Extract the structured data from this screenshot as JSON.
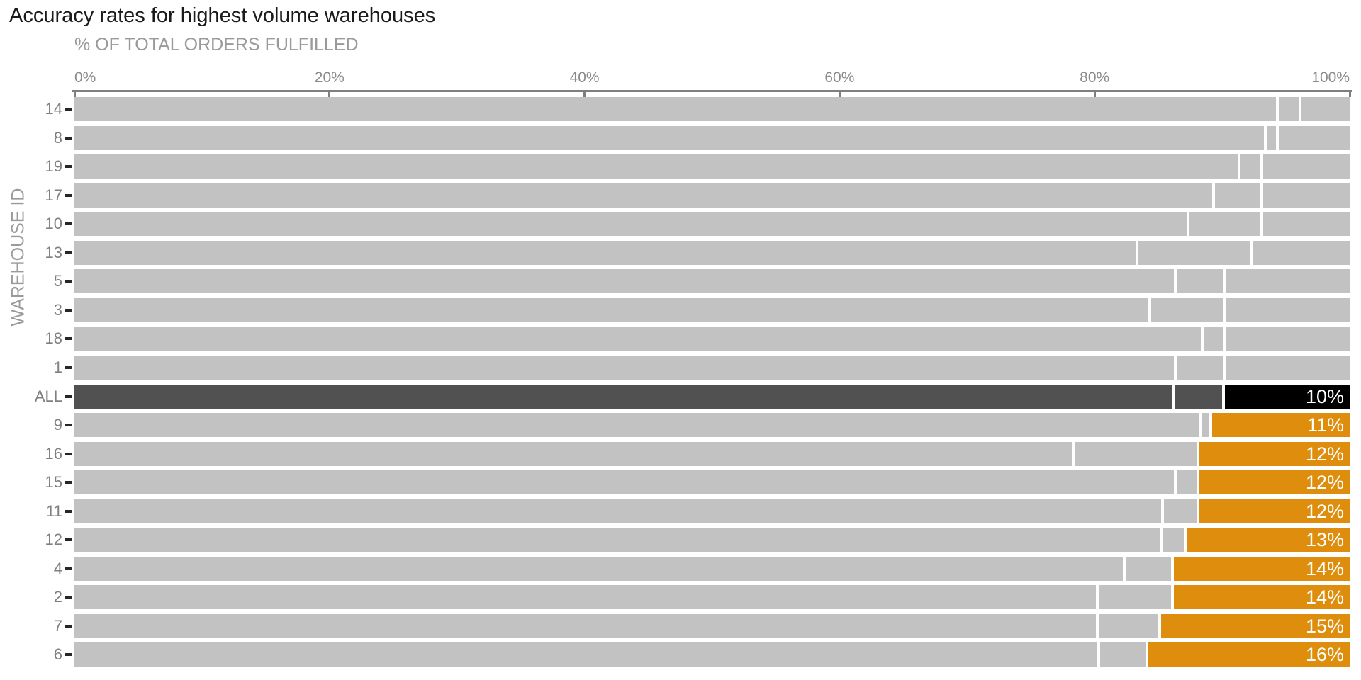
{
  "chart_data": {
    "type": "bar",
    "variant": "horizontal-stacked-100pct",
    "title": "Accuracy rates for highest volume warehouses",
    "xlabel": "% OF TOTAL ORDERS FULFILLED",
    "ylabel": "WAREHOUSE ID",
    "xlim": [
      0,
      100
    ],
    "grid": "off",
    "legend": "none",
    "x_ticks": [
      {
        "value": 0,
        "label": "0%"
      },
      {
        "value": 20,
        "label": "20%"
      },
      {
        "value": 40,
        "label": "40%"
      },
      {
        "value": 60,
        "label": "60%"
      },
      {
        "value": 80,
        "label": "80%"
      },
      {
        "value": 100,
        "label": "100%"
      }
    ],
    "segment_meaning": [
      "segment-1",
      "segment-2",
      "segment-3-inaccurate-share"
    ],
    "rows": [
      {
        "id": "14",
        "segments": [
          94.2,
          1.8,
          4.0
        ],
        "label": null,
        "emphasis": "muted"
      },
      {
        "id": "8",
        "segments": [
          93.3,
          0.9,
          5.8
        ],
        "label": null,
        "emphasis": "muted"
      },
      {
        "id": "19",
        "segments": [
          91.2,
          1.8,
          7.0
        ],
        "label": null,
        "emphasis": "muted"
      },
      {
        "id": "17",
        "segments": [
          89.2,
          3.8,
          7.0
        ],
        "label": null,
        "emphasis": "muted"
      },
      {
        "id": "10",
        "segments": [
          87.2,
          5.8,
          7.0
        ],
        "label": null,
        "emphasis": "muted"
      },
      {
        "id": "13",
        "segments": [
          83.2,
          9.0,
          7.8
        ],
        "label": null,
        "emphasis": "muted"
      },
      {
        "id": "5",
        "segments": [
          86.2,
          3.9,
          9.9
        ],
        "label": null,
        "emphasis": "muted"
      },
      {
        "id": "3",
        "segments": [
          84.2,
          5.9,
          9.9
        ],
        "label": null,
        "emphasis": "muted"
      },
      {
        "id": "18",
        "segments": [
          88.3,
          1.8,
          9.9
        ],
        "label": null,
        "emphasis": "muted"
      },
      {
        "id": "1",
        "segments": [
          86.2,
          3.9,
          9.9
        ],
        "label": null,
        "emphasis": "muted"
      },
      {
        "id": "ALL",
        "segments": [
          86.1,
          3.9,
          10.0
        ],
        "label": "10%",
        "emphasis": "all"
      },
      {
        "id": "9",
        "segments": [
          88.2,
          0.8,
          11.0
        ],
        "label": "11%",
        "emphasis": "highlight"
      },
      {
        "id": "16",
        "segments": [
          78.2,
          9.8,
          12.0
        ],
        "label": "12%",
        "emphasis": "highlight"
      },
      {
        "id": "15",
        "segments": [
          86.2,
          1.8,
          12.0
        ],
        "label": "12%",
        "emphasis": "highlight"
      },
      {
        "id": "11",
        "segments": [
          85.2,
          2.8,
          12.0
        ],
        "label": "12%",
        "emphasis": "highlight"
      },
      {
        "id": "12",
        "segments": [
          85.1,
          1.9,
          13.0
        ],
        "label": "13%",
        "emphasis": "highlight"
      },
      {
        "id": "4",
        "segments": [
          82.2,
          3.8,
          14.0
        ],
        "label": "14%",
        "emphasis": "highlight"
      },
      {
        "id": "2",
        "segments": [
          80.1,
          5.9,
          14.0
        ],
        "label": "14%",
        "emphasis": "highlight"
      },
      {
        "id": "7",
        "segments": [
          80.1,
          4.9,
          15.0
        ],
        "label": "15%",
        "emphasis": "highlight"
      },
      {
        "id": "6",
        "segments": [
          80.2,
          3.8,
          16.0
        ],
        "label": "16%",
        "emphasis": "highlight"
      }
    ]
  },
  "colors": {
    "background": "#ffffff",
    "title_text": "#1a1a1a",
    "axis_title_text": "#9a9a9a",
    "tick_label_text": "#8b8b8b",
    "row_label_text": "#7f7f7f",
    "axis_line": "#7f7f7f",
    "y_tick_dash": "#262626",
    "bar_gray": "#c2c2c2",
    "all_dark": "#515151",
    "all_black": "#000000",
    "highlight_orange": "#de8e0c",
    "bar_label_text": "#ffffff",
    "segment_separator": "#ffffff"
  }
}
